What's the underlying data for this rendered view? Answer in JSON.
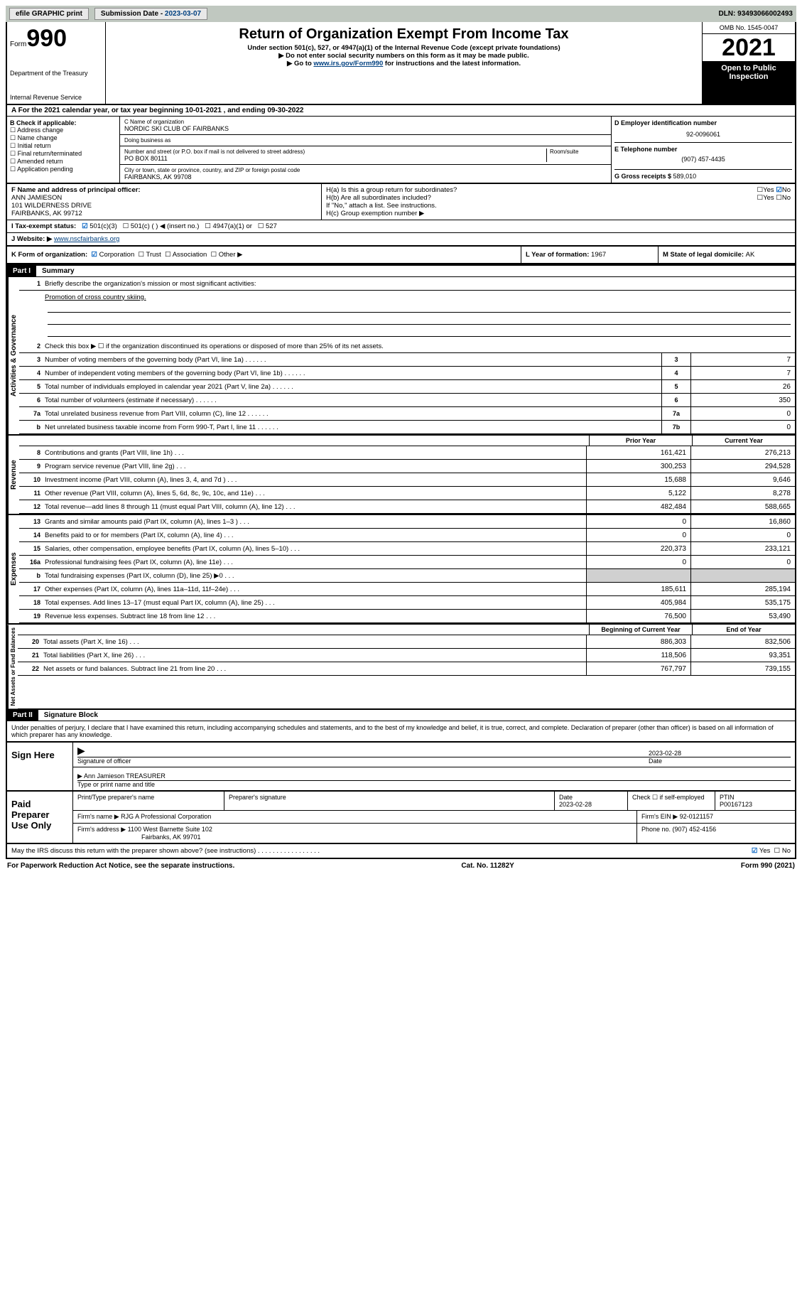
{
  "meta": {
    "form_number": "990",
    "form_word": "Form",
    "omb": "OMB No. 1545-0047",
    "tax_year": "2021",
    "open_public": "Open to Public Inspection",
    "dept": "Department of the Treasury",
    "irs": "Internal Revenue Service",
    "title": "Return of Organization Exempt From Income Tax",
    "subtitle1": "Under section 501(c), 527, or 4947(a)(1) of the Internal Revenue Code (except private foundations)",
    "subtitle2": "▶ Do not enter social security numbers on this form as it may be made public.",
    "subtitle3_pre": "▶ Go to ",
    "subtitle3_link": "www.irs.gov/Form990",
    "subtitle3_post": " for instructions and the latest information.",
    "footer_paperwork": "For Paperwork Reduction Act Notice, see the separate instructions.",
    "cat_no": "Cat. No. 11282Y",
    "footer_form": "Form 990 (2021)"
  },
  "topbar": {
    "efile": "efile GRAPHIC print",
    "sub_label": "Submission Date - ",
    "sub_date": "2023-03-07",
    "dln": "DLN: 93493066002493"
  },
  "A": {
    "text": "For the 2021 calendar year, or tax year beginning 10-01-2021   , and ending 09-30-2022"
  },
  "B": {
    "label": "B Check if applicable:",
    "opts": [
      "Address change",
      "Name change",
      "Initial return",
      "Final return/terminated",
      "Amended return",
      "Application pending"
    ]
  },
  "C": {
    "name_lbl": "C Name of organization",
    "name": "NORDIC SKI CLUB OF FAIRBANKS",
    "dba_lbl": "Doing business as",
    "dba": "",
    "addr_lbl": "Number and street (or P.O. box if mail is not delivered to street address)",
    "room_lbl": "Room/suite",
    "addr": "PO BOX 80111",
    "city_lbl": "City or town, state or province, country, and ZIP or foreign postal code",
    "city": "FAIRBANKS, AK  99708"
  },
  "D": {
    "lbl": "D Employer identification number",
    "val": "92-0096061"
  },
  "E": {
    "lbl": "E Telephone number",
    "val": "(907) 457-4435"
  },
  "G": {
    "lbl": "G Gross receipts $ ",
    "val": "589,010"
  },
  "F": {
    "lbl": "F  Name and address of principal officer:",
    "name": "ANN JAMIESON",
    "addr1": "101 WILDERNESS DRIVE",
    "addr2": "FAIRBANKS, AK  99712"
  },
  "H": {
    "a": "H(a)  Is this a group return for subordinates?",
    "a_ans": "No",
    "b": "H(b)  Are all subordinates included?",
    "b_note": "If \"No,\" attach a list. See instructions.",
    "c": "H(c)  Group exemption number ▶"
  },
  "I": {
    "lbl": "I    Tax-exempt status:",
    "opts": [
      "501(c)(3)",
      "501(c) (  ) ◀ (insert no.)",
      "4947(a)(1) or",
      "527"
    ],
    "checked": 0
  },
  "J": {
    "lbl": "J   Website: ▶ ",
    "val": "www.nscfairbanks.org"
  },
  "K": {
    "lbl": "K Form of organization:",
    "opts": [
      "Corporation",
      "Trust",
      "Association",
      "Other ▶"
    ],
    "checked": 0
  },
  "L": {
    "lbl": "L Year of formation: ",
    "val": "1967"
  },
  "M": {
    "lbl": "M State of legal domicile: ",
    "val": "AK"
  },
  "part1": {
    "bar": "Part I",
    "title": "Summary",
    "q1": "Briefly describe the organization's mission or most significant activities:",
    "q1_val": "Promotion of cross country skiing.",
    "q2": "Check this box ▶ ☐  if the organization discontinued its operations or disposed of more than 25% of its net assets.",
    "gov_label": "Activities & Governance",
    "rev_label": "Revenue",
    "exp_label": "Expenses",
    "net_label": "Net Assets or Fund Balances",
    "hdr_prior": "Prior Year",
    "hdr_current": "Current Year",
    "hdr_boy": "Beginning of Current Year",
    "hdr_eoy": "End of Year",
    "gov_rows": [
      {
        "n": "3",
        "t": "Number of voting members of the governing body (Part VI, line 1a)",
        "box": "3",
        "v": "7"
      },
      {
        "n": "4",
        "t": "Number of independent voting members of the governing body (Part VI, line 1b)",
        "box": "4",
        "v": "7"
      },
      {
        "n": "5",
        "t": "Total number of individuals employed in calendar year 2021 (Part V, line 2a)",
        "box": "5",
        "v": "26"
      },
      {
        "n": "6",
        "t": "Total number of volunteers (estimate if necessary)",
        "box": "6",
        "v": "350"
      },
      {
        "n": "7a",
        "t": "Total unrelated business revenue from Part VIII, column (C), line 12",
        "box": "7a",
        "v": "0"
      },
      {
        "n": "b",
        "t": "Net unrelated business taxable income from Form 990-T, Part I, line 11",
        "box": "7b",
        "v": "0"
      }
    ],
    "rev_rows": [
      {
        "n": "8",
        "t": "Contributions and grants (Part VIII, line 1h)",
        "p": "161,421",
        "c": "276,213"
      },
      {
        "n": "9",
        "t": "Program service revenue (Part VIII, line 2g)",
        "p": "300,253",
        "c": "294,528"
      },
      {
        "n": "10",
        "t": "Investment income (Part VIII, column (A), lines 3, 4, and 7d )",
        "p": "15,688",
        "c": "9,646"
      },
      {
        "n": "11",
        "t": "Other revenue (Part VIII, column (A), lines 5, 6d, 8c, 9c, 10c, and 11e)",
        "p": "5,122",
        "c": "8,278"
      },
      {
        "n": "12",
        "t": "Total revenue—add lines 8 through 11 (must equal Part VIII, column (A), line 12)",
        "p": "482,484",
        "c": "588,665"
      }
    ],
    "exp_rows": [
      {
        "n": "13",
        "t": "Grants and similar amounts paid (Part IX, column (A), lines 1–3 )",
        "p": "0",
        "c": "16,860"
      },
      {
        "n": "14",
        "t": "Benefits paid to or for members (Part IX, column (A), line 4)",
        "p": "0",
        "c": "0"
      },
      {
        "n": "15",
        "t": "Salaries, other compensation, employee benefits (Part IX, column (A), lines 5–10)",
        "p": "220,373",
        "c": "233,121"
      },
      {
        "n": "16a",
        "t": "Professional fundraising fees (Part IX, column (A), line 11e)",
        "p": "0",
        "c": "0"
      },
      {
        "n": "b",
        "t": "Total fundraising expenses (Part IX, column (D), line 25) ▶0",
        "p": "shade",
        "c": "shade"
      },
      {
        "n": "17",
        "t": "Other expenses (Part IX, column (A), lines 11a–11d, 11f–24e)",
        "p": "185,611",
        "c": "285,194"
      },
      {
        "n": "18",
        "t": "Total expenses. Add lines 13–17 (must equal Part IX, column (A), line 25)",
        "p": "405,984",
        "c": "535,175"
      },
      {
        "n": "19",
        "t": "Revenue less expenses. Subtract line 18 from line 12",
        "p": "76,500",
        "c": "53,490"
      }
    ],
    "net_rows": [
      {
        "n": "20",
        "t": "Total assets (Part X, line 16)",
        "p": "886,303",
        "c": "832,506"
      },
      {
        "n": "21",
        "t": "Total liabilities (Part X, line 26)",
        "p": "118,506",
        "c": "93,351"
      },
      {
        "n": "22",
        "t": "Net assets or fund balances. Subtract line 21 from line 20",
        "p": "767,797",
        "c": "739,155"
      }
    ]
  },
  "part2": {
    "bar": "Part II",
    "title": "Signature Block",
    "perjury": "Under penalties of perjury, I declare that I have examined this return, including accompanying schedules and statements, and to the best of my knowledge and belief, it is true, correct, and complete. Declaration of preparer (other than officer) is based on all information of which preparer has any knowledge.",
    "sign_here": "Sign Here",
    "sig_officer_lbl": "Signature of officer",
    "date_lbl": "Date",
    "sig_date": "2023-02-28",
    "name_title": "Ann Jamieson TREASURER",
    "name_title_lbl": "Type or print name and title",
    "paid": "Paid Preparer Use Only",
    "prep_name_lbl": "Print/Type preparer's name",
    "prep_sig_lbl": "Preparer's signature",
    "prep_date_lbl": "Date",
    "prep_date": "2023-02-28",
    "self_emp": "Check ☐ if self-employed",
    "ptin_lbl": "PTIN",
    "ptin": "P00167123",
    "firm_name_lbl": "Firm's name    ▶ ",
    "firm_name": "RJG A Professional Corporation",
    "firm_ein_lbl": "Firm's EIN ▶ ",
    "firm_ein": "92-0121157",
    "firm_addr_lbl": "Firm's address ▶ ",
    "firm_addr1": "1100 West Barnette Suite 102",
    "firm_addr2": "Fairbanks, AK  99701",
    "firm_phone_lbl": "Phone no. ",
    "firm_phone": "(907) 452-4156",
    "discuss": "May the IRS discuss this return with the preparer shown above? (see instructions)",
    "discuss_ans": "Yes"
  },
  "colors": {
    "topbar_bg": "#c0c8c0",
    "link": "#004080",
    "check": "#0060c0",
    "shade": "#d0d0d0"
  }
}
